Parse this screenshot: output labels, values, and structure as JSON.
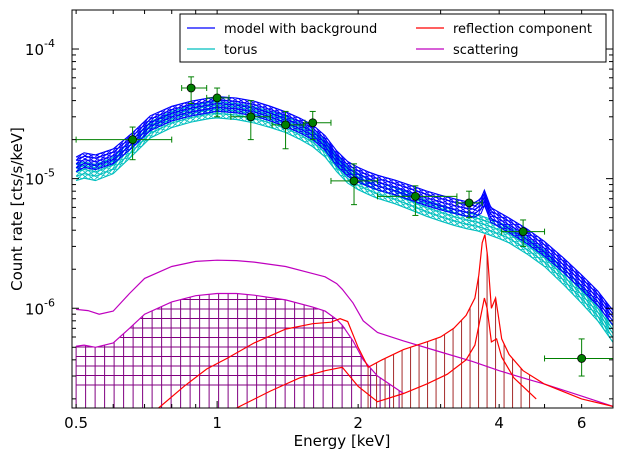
{
  "chart_data": {
    "type": "line",
    "xscale": "log",
    "yscale": "log",
    "xlim": [
      0.49,
      7.0
    ],
    "ylim": [
      1.7e-07,
      0.0002
    ],
    "xlabel": "Energy [keV]",
    "ylabel": "Count rate [cts/s/keV]",
    "x_ticks": [
      {
        "value": 0.5,
        "label": "0.5"
      },
      {
        "value": 1,
        "label": "1"
      },
      {
        "value": 2,
        "label": "2"
      },
      {
        "value": 4,
        "label": "4"
      },
      {
        "value": 6,
        "label": "6"
      }
    ],
    "y_ticks": [
      {
        "value": 1e-06,
        "base": "10",
        "exp": "-6"
      },
      {
        "value": 1e-05,
        "base": "10",
        "exp": "-5"
      },
      {
        "value": 0.0001,
        "base": "10",
        "exp": "-4"
      }
    ],
    "legend": {
      "position": "top-right",
      "entries": [
        {
          "label": "model with background",
          "color": "#0000ff"
        },
        {
          "label": "reflection component",
          "color": "#ff0000"
        },
        {
          "label": "torus",
          "color": "#00bfbf"
        },
        {
          "label": "scattering",
          "color": "#bf00bf"
        }
      ]
    },
    "data_points": {
      "color": "#008000",
      "marker": "circle",
      "points": [
        {
          "x": 0.66,
          "y": 2e-05,
          "xlo": 0.5,
          "xhi": 0.8,
          "ylo": 1.4e-05,
          "yhi": 2.5e-05
        },
        {
          "x": 0.88,
          "y": 5e-05,
          "xlo": 0.84,
          "xhi": 0.95,
          "ylo": 3.8e-05,
          "yhi": 6.1e-05
        },
        {
          "x": 1.0,
          "y": 4.2e-05,
          "xlo": 0.95,
          "xhi": 1.06,
          "ylo": 3e-05,
          "yhi": 5e-05
        },
        {
          "x": 1.18,
          "y": 3e-05,
          "xlo": 1.07,
          "xhi": 1.3,
          "ylo": 2e-05,
          "yhi": 4e-05
        },
        {
          "x": 1.4,
          "y": 2.6e-05,
          "xlo": 1.31,
          "xhi": 1.53,
          "ylo": 1.7e-05,
          "yhi": 3.3e-05
        },
        {
          "x": 1.6,
          "y": 2.7e-05,
          "xlo": 1.54,
          "xhi": 1.75,
          "ylo": 2e-05,
          "yhi": 3.3e-05
        },
        {
          "x": 1.96,
          "y": 9.6e-06,
          "xlo": 1.75,
          "xhi": 2.2,
          "ylo": 6.3e-06,
          "yhi": 1.3e-05
        },
        {
          "x": 2.65,
          "y": 7.3e-06,
          "xlo": 2.2,
          "xhi": 3.25,
          "ylo": 5.2e-06,
          "yhi": 8.8e-06
        },
        {
          "x": 3.45,
          "y": 6.5e-06,
          "xlo": 3.25,
          "xhi": 3.68,
          "ylo": 5e-06,
          "yhi": 8e-06
        },
        {
          "x": 4.5,
          "y": 3.9e-06,
          "xlo": 4.05,
          "xhi": 5.0,
          "ylo": 3e-06,
          "yhi": 4.8e-06
        },
        {
          "x": 6.0,
          "y": 4.1e-07,
          "xlo": 5.0,
          "xhi": 7.0,
          "ylo": 3e-07,
          "yhi": 5.8e-07
        }
      ]
    },
    "series": [
      {
        "name": "model with background",
        "color": "#0000ff",
        "band_count": 5,
        "band_spread": [
          0.87,
          1.13
        ],
        "x": [
          0.5,
          0.52,
          0.55,
          0.6,
          0.66,
          0.72,
          0.8,
          0.88,
          0.96,
          1.0,
          1.1,
          1.2,
          1.3,
          1.4,
          1.5,
          1.6,
          1.7,
          1.8,
          1.9,
          2.0,
          2.1,
          2.2,
          2.4,
          2.6,
          2.8,
          3.0,
          3.2,
          3.4,
          3.55,
          3.66,
          3.72,
          3.78,
          3.84,
          3.95,
          4.2,
          4.6,
          5.0,
          5.5,
          6.0,
          6.5,
          7.0
        ],
        "y": [
          1.3e-05,
          1.4e-05,
          1.35e-05,
          1.5e-05,
          2e-05,
          2.7e-05,
          3.2e-05,
          3.5e-05,
          3.7e-05,
          3.8e-05,
          3.7e-05,
          3.5e-05,
          3.2e-05,
          2.9e-05,
          2.6e-05,
          2.3e-05,
          1.9e-05,
          1.45e-05,
          1.2e-05,
          1.08e-05,
          1e-05,
          9.4e-06,
          8.6e-06,
          7.8e-06,
          7.1e-06,
          6.6e-06,
          6.2e-06,
          5.9e-06,
          5.8e-06,
          6.2e-06,
          7.2e-06,
          6.2e-06,
          5.3e-06,
          5e-06,
          4.4e-06,
          3.6e-06,
          2.9e-06,
          2.15e-06,
          1.6e-06,
          1.2e-06,
          8.5e-07
        ]
      },
      {
        "name": "torus",
        "color": "#00bfbf",
        "band_count": 5,
        "band_spread": [
          0.84,
          1.12
        ],
        "x": [
          0.5,
          0.52,
          0.55,
          0.6,
          0.66,
          0.72,
          0.8,
          0.88,
          0.96,
          1.0,
          1.1,
          1.2,
          1.3,
          1.4,
          1.5,
          1.6,
          1.7,
          1.8,
          1.9,
          2.0,
          2.1,
          2.2,
          2.4,
          2.6,
          2.8,
          3.0,
          3.2,
          3.4,
          3.6,
          3.8,
          4.0,
          4.2,
          4.6,
          5.0,
          5.5,
          6.0,
          6.5,
          7.0
        ],
        "y": [
          1.15e-05,
          1.2e-05,
          1.15e-05,
          1.3e-05,
          1.8e-05,
          2.45e-05,
          2.95e-05,
          3.25e-05,
          3.45e-05,
          3.5e-05,
          3.4e-05,
          3.2e-05,
          2.95e-05,
          2.7e-05,
          2.4e-05,
          2.1e-05,
          1.75e-05,
          1.35e-05,
          1.1e-05,
          9.8e-06,
          9e-06,
          8.4e-06,
          7.6e-06,
          6.8e-06,
          6.1e-06,
          5.6e-06,
          5.2e-06,
          4.9e-06,
          4.7e-06,
          4.4e-06,
          4.1e-06,
          3.8e-06,
          3.1e-06,
          2.5e-06,
          1.8e-06,
          1.3e-06,
          9.5e-07,
          6.5e-07
        ]
      },
      {
        "name": "scattering",
        "color": "#bf00bf",
        "x": [
          0.5,
          0.53,
          0.56,
          0.6,
          0.65,
          0.7,
          0.8,
          0.9,
          1.0,
          1.1,
          1.2,
          1.4,
          1.6,
          1.7,
          1.8,
          1.85,
          1.95,
          2.05,
          2.2,
          2.5,
          3.0,
          3.5,
          4.0,
          4.5,
          5.0,
          6.0,
          7.0
        ],
        "y": [
          9.8e-07,
          9.6e-07,
          9e-07,
          9.5e-07,
          1.3e-06,
          1.7e-06,
          2.1e-06,
          2.3e-06,
          2.35e-06,
          2.33e-06,
          2.27e-06,
          2.1e-06,
          1.85e-06,
          1.75e-06,
          1.55e-06,
          1.4e-06,
          1.1e-06,
          8e-07,
          6.5e-07,
          5.6e-07,
          4.6e-07,
          3.9e-07,
          3.3e-07,
          2.9e-07,
          2.6e-07,
          2.1e-07,
          1.75e-07
        ]
      },
      {
        "name": "reflection component",
        "color": "#ff0000",
        "x": [
          0.75,
          0.85,
          0.95,
          1.05,
          1.2,
          1.4,
          1.6,
          1.75,
          1.83,
          1.9,
          2.0,
          2.1,
          2.25,
          2.5,
          2.8,
          3.0,
          3.2,
          3.4,
          3.55,
          3.62,
          3.68,
          3.73,
          3.78,
          3.85,
          3.93,
          3.98,
          4.05,
          4.2,
          4.5,
          5.0,
          6.0,
          7.0
        ],
        "y": [
          1.7e-07,
          2.5e-07,
          3.4e-07,
          4.1e-07,
          5.4e-07,
          6.9e-07,
          7.6e-07,
          7.8e-07,
          8.3e-07,
          7.9e-07,
          5e-07,
          3.5e-07,
          4e-07,
          4.8e-07,
          5.5e-07,
          6e-07,
          7e-07,
          8.8e-07,
          1.2e-06,
          1.8e-06,
          3.2e-06,
          3.7e-06,
          2.5e-06,
          1e-06,
          1.2e-06,
          9e-07,
          5.8e-07,
          4.4e-07,
          3.3e-07,
          2.6e-07,
          2e-07,
          1.75e-07
        ]
      },
      {
        "name": "scattering lower",
        "color": "#bf00bf",
        "x": [
          0.5,
          0.52,
          0.55,
          0.6,
          0.65,
          0.7,
          0.8,
          0.9,
          1.0,
          1.1,
          1.2,
          1.4,
          1.6,
          1.7,
          1.8,
          1.85,
          1.95,
          2.05,
          2.2,
          2.5
        ],
        "y": [
          5.1e-07,
          5.2e-07,
          5e-07,
          5.4e-07,
          7e-07,
          9e-07,
          1.12e-06,
          1.25e-06,
          1.3e-06,
          1.3e-06,
          1.26e-06,
          1.16e-06,
          1.02e-06,
          9.5e-07,
          8.2e-07,
          7.4e-07,
          5.6e-07,
          4e-07,
          3e-07,
          2.2e-07
        ]
      },
      {
        "name": "reflection lower",
        "color": "#ff0000",
        "x": [
          1.1,
          1.3,
          1.5,
          1.7,
          1.85,
          2.0,
          2.2,
          2.5,
          2.8,
          3.1,
          3.4,
          3.55,
          3.65,
          3.72,
          3.77,
          3.85,
          3.95,
          4.05,
          4.3,
          4.8
        ],
        "y": [
          1.7e-07,
          2.3e-07,
          2.9e-07,
          3.3e-07,
          3.5e-07,
          2.5e-07,
          1.9e-07,
          2.2e-07,
          2.6e-07,
          3.1e-07,
          4e-07,
          5.2e-07,
          8.5e-07,
          1.2e-06,
          1e-06,
          5.5e-07,
          5.8e-07,
          4.2e-07,
          2.9e-07,
          2e-07
        ]
      }
    ],
    "hatched_regions": [
      {
        "color": "#800080",
        "hatch": "grid",
        "x_range": [
          0.5,
          2.5
        ]
      },
      {
        "color": "#a52a2a",
        "hatch": "vertical",
        "x_range": [
          2.1,
          4.8
        ]
      }
    ]
  }
}
